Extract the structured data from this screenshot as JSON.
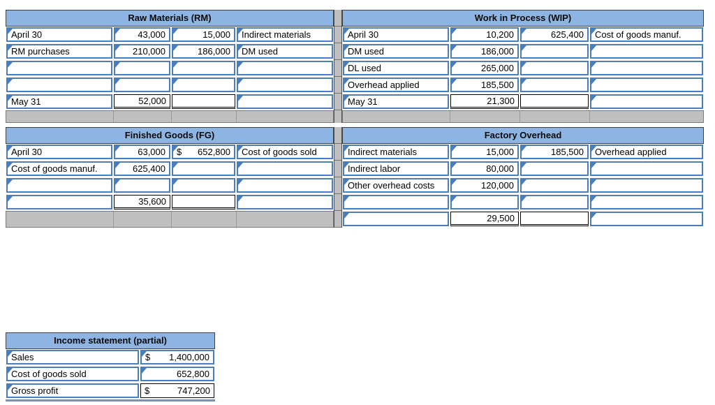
{
  "colors": {
    "header_fill": "#8db4e2",
    "input_border": "#4a7ebb",
    "total_border": "#000000",
    "gray_fill": "#c0c0c0"
  },
  "accounts": [
    {
      "id": "rm",
      "title": "Raw Materials (RM)",
      "gray_footer": true,
      "rows": [
        {
          "cells": [
            {
              "t": "April 30",
              "type": "input"
            },
            {
              "t": "43,000",
              "type": "input"
            },
            {
              "t": "15,000",
              "type": "input"
            },
            {
              "t": "Indirect materials",
              "type": "input"
            }
          ]
        },
        {
          "cells": [
            {
              "t": "RM purchases",
              "type": "input"
            },
            {
              "t": "210,000",
              "type": "input"
            },
            {
              "t": "186,000",
              "type": "input"
            },
            {
              "t": "DM used",
              "type": "input"
            }
          ]
        },
        {
          "cells": [
            {
              "t": "",
              "type": "input"
            },
            {
              "t": "",
              "type": "input"
            },
            {
              "t": "",
              "type": "input"
            },
            {
              "t": "",
              "type": "input"
            }
          ]
        },
        {
          "cells": [
            {
              "t": "",
              "type": "input"
            },
            {
              "t": "",
              "type": "input"
            },
            {
              "t": "",
              "type": "input"
            },
            {
              "t": "",
              "type": "input"
            }
          ]
        },
        {
          "cells": [
            {
              "t": "May 31",
              "type": "input"
            },
            {
              "t": "52,000",
              "type": "total"
            },
            {
              "t": "",
              "type": "total"
            },
            {
              "t": "",
              "type": "input"
            }
          ]
        }
      ]
    },
    {
      "id": "wip",
      "title": "Work in Process (WIP)",
      "gray_footer": true,
      "rows": [
        {
          "cells": [
            {
              "t": "April 30",
              "type": "input"
            },
            {
              "t": "10,200",
              "type": "input"
            },
            {
              "t": "625,400",
              "type": "input"
            },
            {
              "t": "Cost of goods manuf.",
              "type": "input"
            }
          ]
        },
        {
          "cells": [
            {
              "t": "DM used",
              "type": "input"
            },
            {
              "t": "186,000",
              "type": "input"
            },
            {
              "t": "",
              "type": "input"
            },
            {
              "t": "",
              "type": "input"
            }
          ]
        },
        {
          "cells": [
            {
              "t": "DL used",
              "type": "input"
            },
            {
              "t": "265,000",
              "type": "input"
            },
            {
              "t": "",
              "type": "input"
            },
            {
              "t": "",
              "type": "input"
            }
          ]
        },
        {
          "cells": [
            {
              "t": "Overhead applied",
              "type": "input"
            },
            {
              "t": "185,500",
              "type": "input"
            },
            {
              "t": "",
              "type": "input"
            },
            {
              "t": "",
              "type": "input"
            }
          ]
        },
        {
          "cells": [
            {
              "t": "May 31",
              "type": "input"
            },
            {
              "t": "21,300",
              "type": "total"
            },
            {
              "t": "",
              "type": "total"
            },
            {
              "t": "",
              "type": "input"
            }
          ]
        }
      ]
    },
    {
      "id": "fg",
      "title": "Finished Goods (FG)",
      "gray_footer": true,
      "rows": [
        {
          "cells": [
            {
              "t": "April 30",
              "type": "input"
            },
            {
              "t": "63,000",
              "type": "input"
            },
            {
              "t": "652,800",
              "prefix": "$",
              "type": "input"
            },
            {
              "t": "Cost of goods sold",
              "type": "input"
            }
          ]
        },
        {
          "cells": [
            {
              "t": "Cost of goods manuf.",
              "type": "input"
            },
            {
              "t": "625,400",
              "type": "input"
            },
            {
              "t": "",
              "type": "input"
            },
            {
              "t": "",
              "type": "input"
            }
          ]
        },
        {
          "cells": [
            {
              "t": "",
              "type": "input"
            },
            {
              "t": "",
              "type": "input"
            },
            {
              "t": "",
              "type": "input"
            },
            {
              "t": "",
              "type": "input"
            }
          ]
        },
        {
          "cells": [
            {
              "t": "",
              "type": "input"
            },
            {
              "t": "35,600",
              "type": "total"
            },
            {
              "t": "",
              "type": "total"
            },
            {
              "t": "",
              "type": "input"
            }
          ]
        }
      ]
    },
    {
      "id": "fo",
      "title": "Factory Overhead",
      "gray_footer": false,
      "rows": [
        {
          "cells": [
            {
              "t": "Indirect materials",
              "type": "input"
            },
            {
              "t": "15,000",
              "type": "input"
            },
            {
              "t": "185,500",
              "type": "input"
            },
            {
              "t": "Overhead applied",
              "type": "input"
            }
          ]
        },
        {
          "cells": [
            {
              "t": "Indirect labor",
              "type": "input"
            },
            {
              "t": "80,000",
              "type": "input"
            },
            {
              "t": "",
              "type": "input"
            },
            {
              "t": "",
              "type": "input"
            }
          ]
        },
        {
          "cells": [
            {
              "t": "Other overhead costs",
              "type": "input"
            },
            {
              "t": "120,000",
              "type": "input"
            },
            {
              "t": "",
              "type": "input"
            },
            {
              "t": "",
              "type": "input"
            }
          ]
        },
        {
          "cells": [
            {
              "t": "",
              "type": "input"
            },
            {
              "t": "",
              "type": "input"
            },
            {
              "t": "",
              "type": "input"
            },
            {
              "t": "",
              "type": "input"
            }
          ]
        },
        {
          "cells": [
            {
              "t": "",
              "type": "input"
            },
            {
              "t": "29,500",
              "type": "total"
            },
            {
              "t": "",
              "type": "total"
            },
            {
              "t": "",
              "type": "input"
            }
          ]
        }
      ]
    }
  ],
  "income_statement": {
    "title": "Income statement (partial)",
    "rows": [
      {
        "label": "Sales",
        "prefix": "$",
        "value": "1,400,000",
        "type": "input"
      },
      {
        "label": "Cost of goods sold",
        "prefix": "",
        "value": "652,800",
        "type": "input"
      },
      {
        "label": "Gross profit",
        "prefix": "$",
        "value": "747,200",
        "type": "result"
      }
    ]
  }
}
